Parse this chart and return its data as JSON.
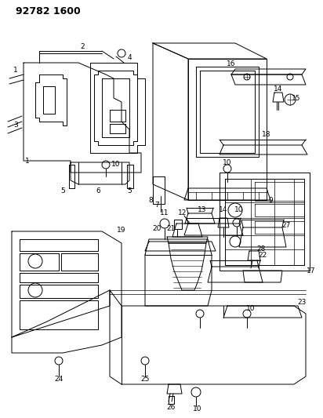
{
  "title": "92782 1600",
  "bg_color": "#ffffff",
  "line_color": "#000000",
  "title_fontsize": 9,
  "label_fontsize": 6.5,
  "fig_width": 4.12,
  "fig_height": 5.33,
  "dpi": 100
}
